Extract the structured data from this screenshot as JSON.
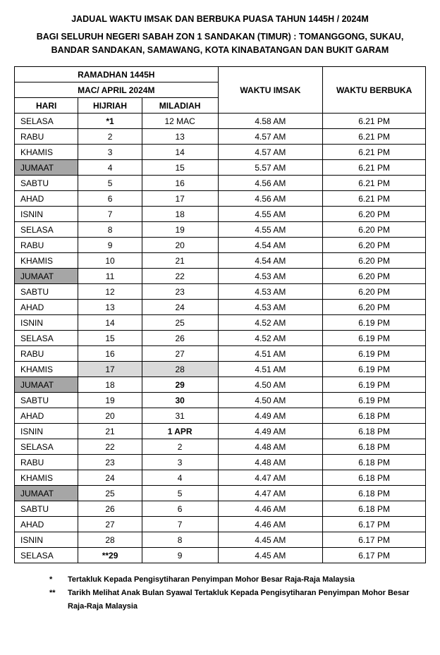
{
  "header": {
    "title": "JADUAL WAKTU IMSAK DAN BERBUKA PUASA TAHUN 1445H / 2024M",
    "subtitle": "BAGI SELURUH NEGERI SABAH ZON 1 SANDAKAN (TIMUR) : TOMANGGONG, SUKAU, BANDAR SANDAKAN, SAMAWANG,  KOTA KINABATANGAN DAN BUKIT GARAM"
  },
  "table": {
    "col_headers": {
      "ramadhan": "RAMADHAN 1445H",
      "macapril": "MAC/ APRIL 2024M",
      "hari": "HARI",
      "hijriah": "HIJRIAH",
      "miladiah": "MILADIAH",
      "imsak": "WAKTU IMSAK",
      "berbuka": "WAKTU BERBUKA"
    },
    "rows": [
      {
        "hari": "SELASA",
        "hij": "*1",
        "hij_bold": true,
        "mil": "12 MAC",
        "imsak": "4.58 AM",
        "berbuka": "6.21 PM"
      },
      {
        "hari": "RABU",
        "hij": "2",
        "mil": "13",
        "imsak": "4.57 AM",
        "berbuka": "6.21 PM"
      },
      {
        "hari": "KHAMIS",
        "hij": "3",
        "mil": "14",
        "imsak": "4.57 AM",
        "berbuka": "6.21 PM"
      },
      {
        "hari": "JUMAAT",
        "hari_dark": true,
        "hij": "4",
        "mil": "15",
        "imsak": "5.57 AM",
        "berbuka": "6.21 PM"
      },
      {
        "hari": "SABTU",
        "hij": "5",
        "mil": "16",
        "imsak": "4.56 AM",
        "berbuka": "6.21 PM"
      },
      {
        "hari": "AHAD",
        "hij": "6",
        "mil": "17",
        "imsak": "4.56 AM",
        "berbuka": "6.21 PM"
      },
      {
        "hari": "ISNIN",
        "hij": "7",
        "mil": "18",
        "imsak": "4.55 AM",
        "berbuka": "6.20 PM"
      },
      {
        "hari": "SELASA",
        "hij": "8",
        "mil": "19",
        "imsak": "4.55 AM",
        "berbuka": "6.20 PM"
      },
      {
        "hari": "RABU",
        "hij": "9",
        "mil": "20",
        "imsak": "4.54 AM",
        "berbuka": "6.20 PM"
      },
      {
        "hari": "KHAMIS",
        "hij": "10",
        "mil": "21",
        "imsak": "4.54 AM",
        "berbuka": "6.20 PM"
      },
      {
        "hari": "JUMAAT",
        "hari_dark": true,
        "hij": "11",
        "mil": "22",
        "imsak": "4.53 AM",
        "berbuka": "6.20 PM"
      },
      {
        "hari": "SABTU",
        "hij": "12",
        "mil": "23",
        "imsak": "4.53 AM",
        "berbuka": "6.20 PM"
      },
      {
        "hari": "AHAD",
        "hij": "13",
        "mil": "24",
        "imsak": "4.53 AM",
        "berbuka": "6.20 PM"
      },
      {
        "hari": "ISNIN",
        "hij": "14",
        "mil": "25",
        "imsak": "4.52 AM",
        "berbuka": "6.19 PM"
      },
      {
        "hari": "SELASA",
        "hij": "15",
        "mil": "26",
        "imsak": "4.52 AM",
        "berbuka": "6.19 PM"
      },
      {
        "hari": "RABU",
        "hij": "16",
        "mil": "27",
        "imsak": "4.51 AM",
        "berbuka": "6.19 PM"
      },
      {
        "hari": "KHAMIS",
        "hij": "17",
        "hij_light": true,
        "mil": "28",
        "mil_light": true,
        "imsak": "4.51 AM",
        "berbuka": "6.19 PM"
      },
      {
        "hari": "JUMAAT",
        "hari_dark": true,
        "hij": "18",
        "mil": "29",
        "mil_bold": true,
        "imsak": "4.50 AM",
        "berbuka": "6.19 PM"
      },
      {
        "hari": "SABTU",
        "hij": "19",
        "mil": "30",
        "mil_bold": true,
        "imsak": "4.50 AM",
        "berbuka": "6.19 PM"
      },
      {
        "hari": "AHAD",
        "hij": "20",
        "mil": "31",
        "imsak": "4.49 AM",
        "berbuka": "6.18 PM"
      },
      {
        "hari": "ISNIN",
        "hij": "21",
        "mil": "1 APR",
        "mil_bold": true,
        "imsak": "4.49 AM",
        "berbuka": "6.18 PM"
      },
      {
        "hari": "SELASA",
        "hij": "22",
        "mil": "2",
        "imsak": "4.48 AM",
        "berbuka": "6.18 PM"
      },
      {
        "hari": "RABU",
        "hij": "23",
        "mil": "3",
        "imsak": "4.48 AM",
        "berbuka": "6.18 PM"
      },
      {
        "hari": "KHAMIS",
        "hij": "24",
        "mil": "4",
        "imsak": "4.47 AM",
        "berbuka": "6.18 PM"
      },
      {
        "hari": "JUMAAT",
        "hari_dark": true,
        "hij": "25",
        "mil": "5",
        "imsak": "4.47 AM",
        "berbuka": "6.18 PM"
      },
      {
        "hari": "SABTU",
        "hij": "26",
        "mil": "6",
        "imsak": "4.46 AM",
        "berbuka": "6.18 PM"
      },
      {
        "hari": "AHAD",
        "hij": "27",
        "mil": "7",
        "imsak": "4.46 AM",
        "berbuka": "6.17 PM"
      },
      {
        "hari": "ISNIN",
        "hij": "28",
        "mil": "8",
        "imsak": "4.45 AM",
        "berbuka": "6.17 PM"
      },
      {
        "hari": "SELASA",
        "hij": "**29",
        "hij_bold": true,
        "mil": "9",
        "imsak": "4.45 AM",
        "berbuka": "6.17 PM"
      }
    ]
  },
  "footnotes": {
    "n1_mark": "*",
    "n1_text": "Tertakluk Kepada Pengisytiharan Penyimpan Mohor Besar Raja-Raja Malaysia",
    "n2_mark": "**",
    "n2_text": "Tarikh Melihat Anak Bulan Syawal Tertakluk Kepada Pengisytiharan Penyimpan Mohor Besar Raja-Raja Malaysia"
  },
  "style": {
    "shade_dark": "#a6a6a6",
    "shade_light": "#d9d9d9",
    "border_color": "#000000",
    "background_color": "#ffffff"
  }
}
